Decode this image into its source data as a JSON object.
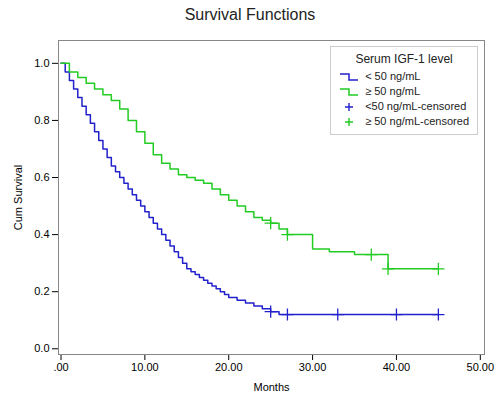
{
  "chart_data": {
    "type": "step",
    "title": "Survival Functions",
    "x_label": "Months",
    "y_label": "Cum Survival",
    "legend_title": "Serum IGF-1 level",
    "legend": "upper right",
    "grid": false,
    "xlim": [
      -0.3,
      50.5
    ],
    "ylim": [
      -0.02,
      1.08
    ],
    "xticks": [
      {
        "value": 0,
        "label": ".00"
      },
      {
        "value": 10,
        "label": "10.00"
      },
      {
        "value": 20,
        "label": "20.00"
      },
      {
        "value": 30,
        "label": "30.00"
      },
      {
        "value": 40,
        "label": "40.00"
      },
      {
        "value": 50,
        "label": "50.00"
      }
    ],
    "yticks": [
      {
        "value": 0.0,
        "label": "0.0"
      },
      0.2,
      0.4,
      0.6,
      0.8,
      {
        "value": 1.0,
        "label": "1.0"
      }
    ],
    "series": [
      {
        "name": "< 50 ng/mL",
        "type": "step",
        "color": "#2222CC",
        "x": [
          0,
          0.5,
          1,
          1.5,
          2,
          2.5,
          3,
          3.5,
          4,
          4.5,
          5,
          5.5,
          6,
          6.5,
          7,
          7.5,
          8,
          8.5,
          9,
          9.5,
          10,
          10.5,
          11,
          11.5,
          12,
          12.5,
          13,
          13.5,
          14,
          14.5,
          15,
          15.5,
          16,
          16.5,
          17,
          17.5,
          18,
          18.5,
          19,
          19.5,
          20,
          21,
          22,
          23,
          24,
          25,
          26,
          27,
          28,
          45
        ],
        "values": [
          1.0,
          0.97,
          0.94,
          0.91,
          0.88,
          0.85,
          0.82,
          0.79,
          0.76,
          0.73,
          0.7,
          0.67,
          0.64,
          0.62,
          0.6,
          0.58,
          0.56,
          0.54,
          0.52,
          0.5,
          0.48,
          0.46,
          0.44,
          0.42,
          0.4,
          0.38,
          0.36,
          0.34,
          0.32,
          0.3,
          0.28,
          0.27,
          0.26,
          0.25,
          0.24,
          0.23,
          0.22,
          0.21,
          0.2,
          0.19,
          0.18,
          0.17,
          0.16,
          0.15,
          0.14,
          0.13,
          0.12,
          0.12,
          0.12,
          0.12
        ]
      },
      {
        "name": "≥ 50 ng/mL",
        "type": "step",
        "color": "#22CC22",
        "x": [
          0,
          1,
          2,
          3,
          4,
          5,
          6,
          7,
          8,
          9,
          10,
          11,
          12,
          13,
          14,
          15,
          16,
          17,
          18,
          19,
          20,
          21,
          22,
          23,
          24,
          25,
          26,
          27,
          28,
          30,
          32,
          35,
          37,
          39,
          45
        ],
        "values": [
          1.0,
          0.97,
          0.95,
          0.93,
          0.91,
          0.89,
          0.87,
          0.84,
          0.8,
          0.76,
          0.72,
          0.68,
          0.65,
          0.63,
          0.61,
          0.6,
          0.59,
          0.58,
          0.56,
          0.54,
          0.52,
          0.5,
          0.48,
          0.46,
          0.45,
          0.44,
          0.42,
          0.4,
          0.4,
          0.35,
          0.34,
          0.33,
          0.33,
          0.28,
          0.28
        ]
      },
      {
        "name": "<50 ng/mL-censored",
        "type": "scatter",
        "marker": "plus",
        "color": "#2222CC",
        "x": [
          25,
          27,
          33,
          40,
          45
        ],
        "values": [
          0.13,
          0.12,
          0.12,
          0.12,
          0.12
        ]
      },
      {
        "name": "≥ 50 ng/mL-censored",
        "type": "scatter",
        "marker": "plus",
        "color": "#22CC22",
        "x": [
          25,
          27,
          37,
          39,
          45
        ],
        "values": [
          0.44,
          0.4,
          0.33,
          0.28,
          0.28
        ]
      }
    ]
  }
}
